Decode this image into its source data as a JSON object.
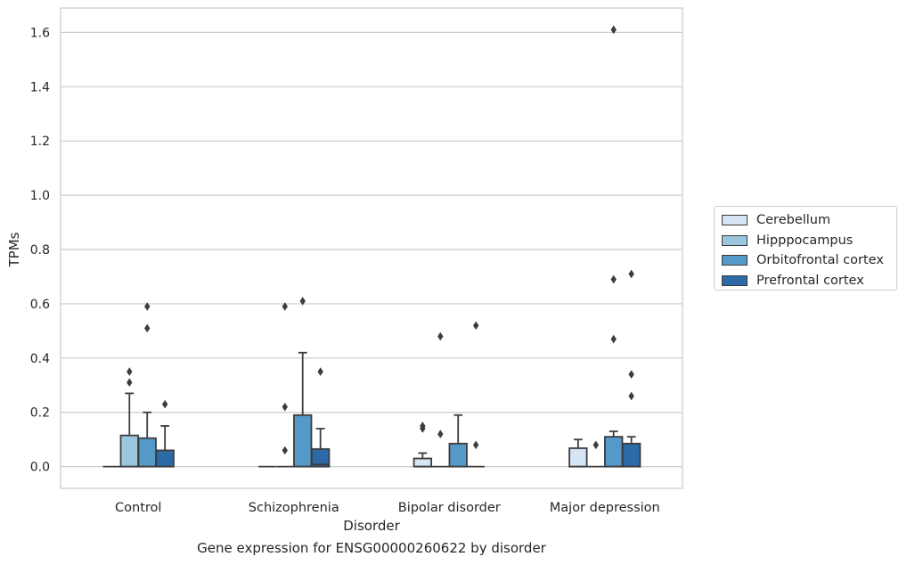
{
  "chart_data": {
    "type": "boxplot",
    "title": "",
    "caption": "Gene expression for ENSG00000260622 by disorder",
    "xlabel": "Disorder",
    "ylabel": "TPMs",
    "ylim": [
      -0.08,
      1.69
    ],
    "yticks": [
      0.0,
      0.2,
      0.4,
      0.6,
      0.8,
      1.0,
      1.2,
      1.4,
      1.6
    ],
    "ytick_labels": [
      "0.0",
      "0.2",
      "0.4",
      "0.6",
      "0.8",
      "1.0",
      "1.2",
      "1.4",
      "1.6"
    ],
    "grid": "horizontal",
    "legend_position": "right-outside",
    "categories": [
      "Control",
      "Schizophrenia",
      "Bipolar disorder",
      "Major depression"
    ],
    "series": [
      {
        "name": "Cerebellum",
        "color": "#d6e5f4",
        "boxes": [
          {
            "q1": 0,
            "median": 0,
            "q3": 0,
            "whisker_low": 0,
            "whisker_high": 0,
            "outliers": []
          },
          {
            "q1": 0,
            "median": 0,
            "q3": 0,
            "whisker_low": 0,
            "whisker_high": 0,
            "outliers": []
          },
          {
            "q1": 0,
            "median": 0,
            "q3": 0.03,
            "whisker_low": 0,
            "whisker_high": 0.05,
            "outliers": [
              0.14,
              0.15
            ]
          },
          {
            "q1": 0,
            "median": 0,
            "q3": 0.068,
            "whisker_low": 0,
            "whisker_high": 0.1,
            "outliers": []
          }
        ]
      },
      {
        "name": "Hipppocampus",
        "color": "#9bc6df",
        "boxes": [
          {
            "q1": 0,
            "median": 0,
            "q3": 0.115,
            "whisker_low": 0,
            "whisker_high": 0.27,
            "outliers": [
              0.31,
              0.35
            ]
          },
          {
            "q1": 0,
            "median": 0,
            "q3": 0,
            "whisker_low": 0,
            "whisker_high": 0,
            "outliers": [
              0.06,
              0.22,
              0.59
            ]
          },
          {
            "q1": 0,
            "median": 0,
            "q3": 0,
            "whisker_low": 0,
            "whisker_high": 0,
            "outliers": [
              0.12,
              0.48
            ]
          },
          {
            "q1": 0,
            "median": 0,
            "q3": 0,
            "whisker_low": 0,
            "whisker_high": 0,
            "outliers": [
              0.08
            ]
          }
        ]
      },
      {
        "name": "Orbitofrontal cortex",
        "color": "#5599c9",
        "boxes": [
          {
            "q1": 0,
            "median": 0,
            "q3": 0.105,
            "whisker_low": 0,
            "whisker_high": 0.2,
            "outliers": [
              0.51,
              0.59
            ]
          },
          {
            "q1": 0,
            "median": 0,
            "q3": 0.19,
            "whisker_low": 0,
            "whisker_high": 0.42,
            "outliers": [
              0.61
            ]
          },
          {
            "q1": 0,
            "median": 0,
            "q3": 0.085,
            "whisker_low": 0,
            "whisker_high": 0.19,
            "outliers": []
          },
          {
            "q1": 0,
            "median": 0,
            "q3": 0.11,
            "whisker_low": 0,
            "whisker_high": 0.13,
            "outliers": [
              0.47,
              0.69,
              1.61
            ]
          }
        ]
      },
      {
        "name": "Prefrontal cortex",
        "color": "#2c69a7",
        "boxes": [
          {
            "q1": 0,
            "median": 0,
            "q3": 0.06,
            "whisker_low": 0,
            "whisker_high": 0.15,
            "outliers": [
              0.23
            ]
          },
          {
            "q1": 0,
            "median": 0.008,
            "q3": 0.065,
            "whisker_low": 0,
            "whisker_high": 0.14,
            "outliers": [
              0.35
            ]
          },
          {
            "q1": 0,
            "median": 0,
            "q3": 0,
            "whisker_low": 0,
            "whisker_high": 0,
            "outliers": [
              0.08,
              0.52
            ]
          },
          {
            "q1": 0,
            "median": 0,
            "q3": 0.085,
            "whisker_low": 0,
            "whisker_high": 0.11,
            "outliers": [
              0.26,
              0.34,
              0.71
            ]
          }
        ]
      }
    ]
  }
}
